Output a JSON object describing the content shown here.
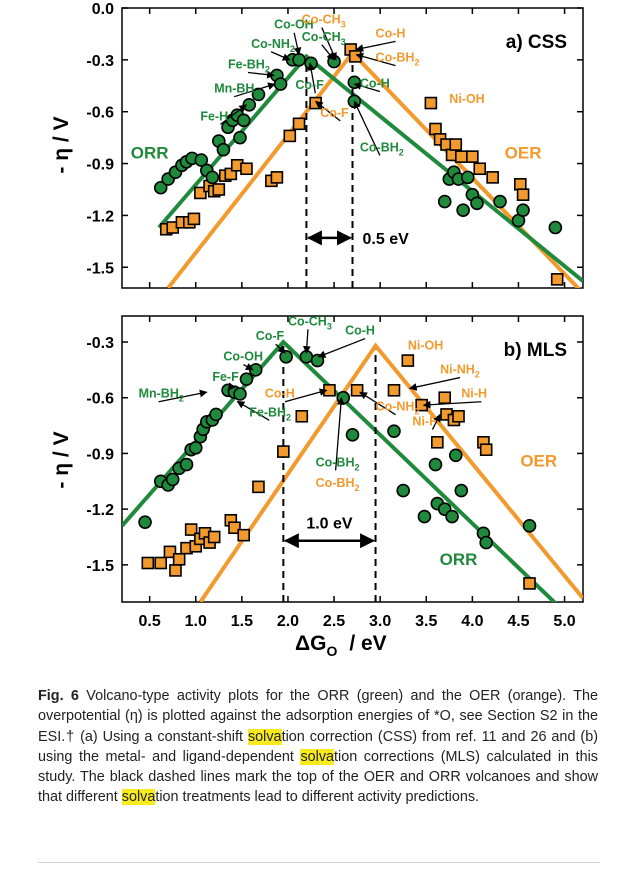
{
  "colors": {
    "orr": "#1f8a3c",
    "oer": "#f29a2e",
    "highlight": "#f7ea1e"
  },
  "chart_data": [
    {
      "type": "scatter",
      "panel_title": "a) CSS",
      "xlim": [
        0.2,
        5.2
      ],
      "ylim": [
        -1.62,
        0.0
      ],
      "xticks": [
        "0.5",
        "1.0",
        "1.5",
        "2.0",
        "2.5",
        "3.0",
        "3.5",
        "4.0",
        "4.5",
        "5.0"
      ],
      "yticks": [
        "0.0",
        "-0.3",
        "-0.6",
        "-0.9",
        "-1.2",
        "-1.5"
      ],
      "ylabel": "- η / V",
      "series_labels": [
        {
          "text": "ORR",
          "x": 0.5,
          "y": -0.87
        },
        {
          "text": "OER",
          "x": 4.55,
          "y": -0.87
        }
      ],
      "dashed_x": [
        2.2,
        2.7
      ],
      "gap_label": "0.5 eV",
      "gap_y": -1.33,
      "volcano_orr": {
        "peak": [
          2.2,
          -0.28
        ],
        "left": [
          0.6,
          -1.27
        ],
        "right": [
          5.2,
          -1.58
        ]
      },
      "volcano_oer": {
        "peak": [
          2.7,
          -0.26
        ],
        "left": [
          0.7,
          -1.62
        ],
        "right": [
          5.2,
          -1.65
        ]
      },
      "orr_points": [
        [
          0.62,
          -1.04
        ],
        [
          0.7,
          -0.99
        ],
        [
          0.78,
          -0.95
        ],
        [
          0.85,
          -0.91
        ],
        [
          0.9,
          -0.89
        ],
        [
          0.96,
          -0.87
        ],
        [
          1.06,
          -0.88
        ],
        [
          1.12,
          -0.94
        ],
        [
          1.18,
          -0.98
        ],
        [
          1.25,
          -0.77
        ],
        [
          1.3,
          -0.82
        ],
        [
          1.35,
          -0.69
        ],
        [
          1.4,
          -0.65
        ],
        [
          1.45,
          -0.62
        ],
        [
          1.48,
          -0.75
        ],
        [
          1.52,
          -0.65
        ],
        [
          1.58,
          -0.56
        ],
        [
          1.68,
          -0.5
        ],
        [
          1.88,
          -0.39
        ],
        [
          1.92,
          -0.44
        ],
        [
          2.05,
          -0.3
        ],
        [
          2.12,
          -0.3
        ],
        [
          2.25,
          -0.32
        ],
        [
          2.5,
          -0.31
        ],
        [
          2.72,
          -0.54
        ],
        [
          2.72,
          -0.43
        ],
        [
          3.7,
          -1.12
        ],
        [
          3.75,
          -0.99
        ],
        [
          3.8,
          -0.95
        ],
        [
          3.85,
          -0.99
        ],
        [
          3.9,
          -1.17
        ],
        [
          3.95,
          -0.98
        ],
        [
          4.0,
          -1.08
        ],
        [
          4.05,
          -1.13
        ],
        [
          4.3,
          -1.12
        ],
        [
          4.5,
          -1.23
        ],
        [
          4.55,
          -1.17
        ],
        [
          4.9,
          -1.27
        ]
      ],
      "oer_points": [
        [
          0.68,
          -1.28
        ],
        [
          0.75,
          -1.27
        ],
        [
          0.85,
          -1.24
        ],
        [
          0.93,
          -1.24
        ],
        [
          0.98,
          -1.22
        ],
        [
          1.05,
          -1.07
        ],
        [
          1.15,
          -1.03
        ],
        [
          1.2,
          -1.06
        ],
        [
          1.25,
          -1.05
        ],
        [
          1.32,
          -0.97
        ],
        [
          1.38,
          -0.96
        ],
        [
          1.45,
          -0.91
        ],
        [
          1.55,
          -0.93
        ],
        [
          1.82,
          -1.0
        ],
        [
          1.88,
          -0.98
        ],
        [
          2.02,
          -0.74
        ],
        [
          2.12,
          -0.67
        ],
        [
          2.3,
          -0.55
        ],
        [
          2.68,
          -0.24
        ],
        [
          2.73,
          -0.28
        ],
        [
          3.55,
          -0.55
        ],
        [
          3.6,
          -0.7
        ],
        [
          3.65,
          -0.76
        ],
        [
          3.72,
          -0.79
        ],
        [
          3.78,
          -0.85
        ],
        [
          3.82,
          -0.79
        ],
        [
          3.88,
          -0.86
        ],
        [
          4.0,
          -0.86
        ],
        [
          4.08,
          -0.93
        ],
        [
          4.22,
          -0.98
        ],
        [
          4.52,
          -1.02
        ],
        [
          4.55,
          -1.08
        ],
        [
          4.92,
          -1.57
        ]
      ],
      "annotations": [
        {
          "text": "Co-OH",
          "sub": "",
          "color": "orr",
          "x": 1.85,
          "y": -0.12,
          "ax": 2.12,
          "ay": -0.27
        },
        {
          "text": "Co-NH",
          "sub": "2",
          "color": "orr",
          "x": 1.6,
          "y": -0.23,
          "ax": 2.02,
          "ay": -0.3
        },
        {
          "text": "Fe-BH",
          "sub": "2",
          "color": "orr",
          "x": 1.35,
          "y": -0.35,
          "ax": 1.85,
          "ay": -0.39
        },
        {
          "text": "Mn-BH",
          "sub": "2",
          "color": "orr",
          "x": 1.2,
          "y": -0.49,
          "ax": 1.86,
          "ay": -0.44
        },
        {
          "text": "Fe-H",
          "sub": "",
          "color": "orr",
          "x": 1.05,
          "y": -0.65,
          "ax": 1.55,
          "ay": -0.56
        },
        {
          "text": "Co-CH",
          "sub": "3",
          "color": "oer",
          "x": 2.15,
          "y": -0.09,
          "ax": 2.52,
          "ay": -0.3
        },
        {
          "text": "Co-CH",
          "sub": "3",
          "color": "orr",
          "x": 2.15,
          "y": -0.19,
          "ax": 2.5,
          "ay": -0.3
        },
        {
          "text": "Co-H",
          "sub": "",
          "color": "oer",
          "x": 2.95,
          "y": -0.17,
          "ax": 2.74,
          "ay": -0.24
        },
        {
          "text": "Co-BH",
          "sub": "2",
          "color": "oer",
          "x": 2.95,
          "y": -0.31,
          "ax": 2.74,
          "ay": -0.27
        },
        {
          "text": "Co-F",
          "sub": "",
          "color": "orr",
          "x": 2.08,
          "y": -0.47,
          "ax": 2.24,
          "ay": -0.32
        },
        {
          "text": "Co-F",
          "sub": "",
          "color": "oer",
          "x": 2.35,
          "y": -0.63,
          "ax": 2.3,
          "ay": -0.54
        },
        {
          "text": "Co-H",
          "sub": "",
          "color": "orr",
          "x": 2.78,
          "y": -0.46,
          "ax": 2.72,
          "ay": -0.44
        },
        {
          "text": "Co-BH",
          "sub": "2",
          "color": "orr",
          "x": 2.78,
          "y": -0.83,
          "ax": 2.72,
          "ay": -0.54
        },
        {
          "text": "Ni-OH",
          "sub": "",
          "color": "oer",
          "x": 3.75,
          "y": -0.55,
          "ax": null,
          "ay": null
        }
      ]
    },
    {
      "type": "scatter",
      "panel_title": "b) MLS",
      "xlim": [
        0.2,
        5.2
      ],
      "ylim": [
        -1.7,
        -0.16
      ],
      "xticks": [
        "0.5",
        "1.0",
        "1.5",
        "2.0",
        "2.5",
        "3.0",
        "3.5",
        "4.0",
        "4.5",
        "5.0"
      ],
      "yticks": [
        "-0.3",
        "-0.6",
        "-0.9",
        "-1.2",
        "-1.5"
      ],
      "ylabel": "- η / V",
      "xlabel": "ΔG",
      "xlabel_sub": "O",
      "xlabel_unit": "/  eV",
      "series_labels": [
        {
          "text": "ORR",
          "x": 3.85,
          "y": -1.5
        },
        {
          "text": "OER",
          "x": 4.72,
          "y": -0.97
        }
      ],
      "dashed_x": [
        1.95,
        2.95
      ],
      "gap_label": "1.0 eV",
      "gap_y": -1.37,
      "volcano_orr": {
        "peak": [
          1.95,
          -0.3
        ],
        "left": [
          0.2,
          -1.29
        ],
        "right": [
          4.95,
          -1.73
        ]
      },
      "volcano_oer": {
        "peak": [
          2.95,
          -0.32
        ],
        "left": [
          1.05,
          -1.7
        ],
        "right": [
          5.2,
          -1.68
        ]
      },
      "orr_points": [
        [
          0.45,
          -1.27
        ],
        [
          0.62,
          -1.05
        ],
        [
          0.7,
          -1.07
        ],
        [
          0.75,
          -1.04
        ],
        [
          0.82,
          -0.98
        ],
        [
          0.9,
          -0.96
        ],
        [
          0.95,
          -0.88
        ],
        [
          1.0,
          -0.87
        ],
        [
          1.05,
          -0.81
        ],
        [
          1.08,
          -0.77
        ],
        [
          1.12,
          -0.73
        ],
        [
          1.18,
          -0.72
        ],
        [
          1.22,
          -0.69
        ],
        [
          1.35,
          -0.56
        ],
        [
          1.42,
          -0.57
        ],
        [
          1.48,
          -0.58
        ],
        [
          1.55,
          -0.5
        ],
        [
          1.65,
          -0.45
        ],
        [
          1.98,
          -0.38
        ],
        [
          2.2,
          -0.38
        ],
        [
          2.32,
          -0.4
        ],
        [
          2.6,
          -0.6
        ],
        [
          2.7,
          -0.8
        ],
        [
          3.15,
          -0.78
        ],
        [
          3.25,
          -1.1
        ],
        [
          3.48,
          -1.24
        ],
        [
          3.6,
          -0.96
        ],
        [
          3.62,
          -1.17
        ],
        [
          3.7,
          -1.2
        ],
        [
          3.78,
          -1.24
        ],
        [
          3.82,
          -0.91
        ],
        [
          3.88,
          -1.1
        ],
        [
          4.12,
          -1.33
        ],
        [
          4.15,
          -1.38
        ],
        [
          4.62,
          -1.29
        ]
      ],
      "oer_points": [
        [
          0.48,
          -1.49
        ],
        [
          0.62,
          -1.49
        ],
        [
          0.72,
          -1.43
        ],
        [
          0.78,
          -1.53
        ],
        [
          0.82,
          -1.47
        ],
        [
          0.9,
          -1.41
        ],
        [
          0.95,
          -1.31
        ],
        [
          1.0,
          -1.4
        ],
        [
          1.05,
          -1.36
        ],
        [
          1.1,
          -1.33
        ],
        [
          1.15,
          -1.38
        ],
        [
          1.2,
          -1.35
        ],
        [
          1.38,
          -1.26
        ],
        [
          1.42,
          -1.3
        ],
        [
          1.52,
          -1.34
        ],
        [
          1.68,
          -1.08
        ],
        [
          1.95,
          -0.89
        ],
        [
          2.15,
          -0.7
        ],
        [
          2.45,
          -0.56
        ],
        [
          2.75,
          -0.56
        ],
        [
          3.15,
          -0.56
        ],
        [
          3.3,
          -0.4
        ],
        [
          3.45,
          -0.64
        ],
        [
          3.62,
          -0.84
        ],
        [
          3.7,
          -0.6
        ],
        [
          3.72,
          -0.69
        ],
        [
          3.8,
          -0.72
        ],
        [
          3.85,
          -0.7
        ],
        [
          4.12,
          -0.84
        ],
        [
          4.15,
          -0.88
        ],
        [
          4.62,
          -1.6
        ]
      ],
      "annotations": [
        {
          "text": "Co-CH",
          "sub": "3",
          "color": "orr",
          "x": 2.0,
          "y": -0.21,
          "ax": 2.2,
          "ay": -0.36
        },
        {
          "text": "Co-F",
          "sub": "",
          "color": "orr",
          "x": 1.65,
          "y": -0.29,
          "ax": 1.97,
          "ay": -0.36
        },
        {
          "text": "Co-H",
          "sub": "",
          "color": "orr",
          "x": 2.62,
          "y": -0.26,
          "ax": 2.33,
          "ay": -0.38
        },
        {
          "text": "Co-OH",
          "sub": "",
          "color": "orr",
          "x": 1.3,
          "y": -0.4,
          "ax": 1.62,
          "ay": -0.45
        },
        {
          "text": "Fe-F",
          "sub": "",
          "color": "orr",
          "x": 1.18,
          "y": -0.51,
          "ax": 1.35,
          "ay": -0.56
        },
        {
          "text": "Mn-BH",
          "sub": "2",
          "color": "orr",
          "x": 0.38,
          "y": -0.6,
          "ax": 1.12,
          "ay": -0.57
        },
        {
          "text": "Fe-BH",
          "sub": "2",
          "color": "orr",
          "x": 1.58,
          "y": -0.7,
          "ax": 1.45,
          "ay": -0.62
        },
        {
          "text": "Co-H",
          "sub": "",
          "color": "oer",
          "x": 1.75,
          "y": -0.6,
          "ax": 2.42,
          "ay": -0.56
        },
        {
          "text": "Co-NH",
          "sub": "2",
          "color": "oer",
          "x": 2.95,
          "y": -0.67,
          "ax": 2.78,
          "ay": -0.57
        },
        {
          "text": "Ni-OH",
          "sub": "",
          "color": "oer",
          "x": 3.3,
          "y": -0.34,
          "ax": null,
          "ay": null
        },
        {
          "text": "Ni-NH",
          "sub": "2",
          "color": "oer",
          "x": 3.65,
          "y": -0.47,
          "ax": 3.32,
          "ay": -0.55
        },
        {
          "text": "Ni-H",
          "sub": "",
          "color": "oer",
          "x": 3.88,
          "y": -0.6,
          "ax": 3.47,
          "ay": -0.64
        },
        {
          "text": "Ni-F",
          "sub": "",
          "color": "oer",
          "x": 3.35,
          "y": -0.75,
          "ax": 3.65,
          "ay": -0.69
        },
        {
          "text": "Co-BH",
          "sub": "2",
          "color": "orr",
          "x": 2.3,
          "y": -0.97,
          "ax": 2.58,
          "ay": -0.6
        },
        {
          "text": "Co-BH",
          "sub": "2",
          "color": "oer",
          "x": 2.3,
          "y": -1.08,
          "ax": null,
          "ay": null
        }
      ]
    }
  ],
  "caption": {
    "label": "Fig. 6",
    "text_1": "  Volcano-type activity plots for the ORR (green) and the OER (orange). The overpotential (η) is plotted against the adsorption energies of *O, see Section S2 in the ESI.† (a) Using a constant-shift ",
    "hl_1": "solva",
    "text_2": "tion correction (CSS) from ref. 11 and 26 and (b) using the metal- and ligand-dependent ",
    "hl_2": "solva",
    "text_3": "tion corrections (MLS) calculated in this study. The black dashed lines mark the top of the OER and ORR volcanoes and show that different ",
    "hl_3": "solva",
    "text_4": "tion treatments lead to different activity predictions."
  }
}
